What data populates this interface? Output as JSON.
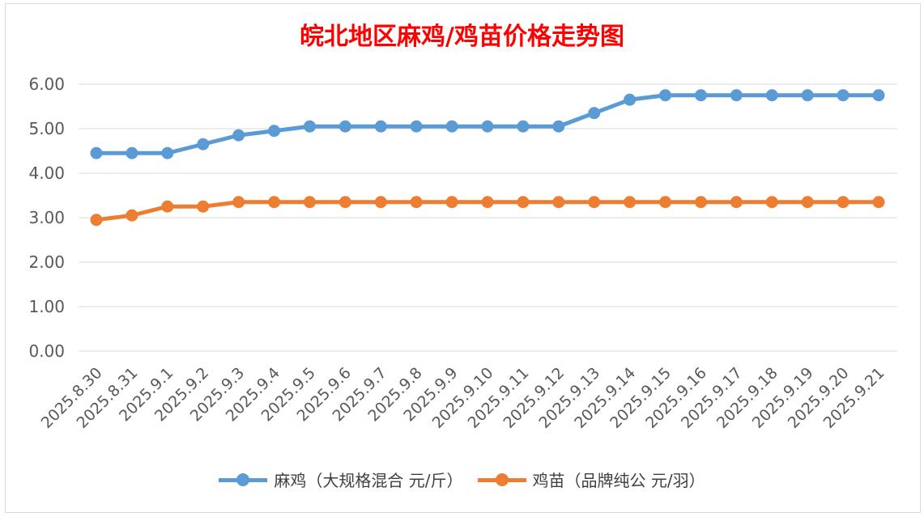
{
  "chart_data": {
    "type": "line",
    "title": "皖北地区麻鸡/鸡苗价格走势图",
    "categories": [
      "2025.8.30",
      "2025.8.31",
      "2025.9.1",
      "2025.9.2",
      "2025.9.3",
      "2025.9.4",
      "2025.9.5",
      "2025.9.6",
      "2025.9.7",
      "2025.9.8",
      "2025.9.9",
      "2025.9.10",
      "2025.9.11",
      "2025.9.12",
      "2025.9.13",
      "2025.9.14",
      "2025.9.15",
      "2025.9.16",
      "2025.9.17",
      "2025.9.18",
      "2025.9.19",
      "2025.9.20",
      "2025.9.21"
    ],
    "yticks": [
      "0.00",
      "1.00",
      "2.00",
      "3.00",
      "4.00",
      "5.00",
      "6.00"
    ],
    "ylim": [
      0,
      6
    ],
    "grid": true,
    "legend_position": "bottom",
    "series": [
      {
        "name": "麻鸡（大规格混合 元/斤）",
        "color": "#5b9bd5",
        "values": [
          4.45,
          4.45,
          4.45,
          4.65,
          4.85,
          4.95,
          5.05,
          5.05,
          5.05,
          5.05,
          5.05,
          5.05,
          5.05,
          5.05,
          5.35,
          5.65,
          5.75,
          5.75,
          5.75,
          5.75,
          5.75,
          5.75,
          5.75
        ]
      },
      {
        "name": "鸡苗（品牌纯公 元/羽）",
        "color": "#ed7d31",
        "values": [
          2.95,
          3.05,
          3.25,
          3.25,
          3.35,
          3.35,
          3.35,
          3.35,
          3.35,
          3.35,
          3.35,
          3.35,
          3.35,
          3.35,
          3.35,
          3.35,
          3.35,
          3.35,
          3.35,
          3.35,
          3.35,
          3.35,
          3.35
        ]
      }
    ]
  }
}
